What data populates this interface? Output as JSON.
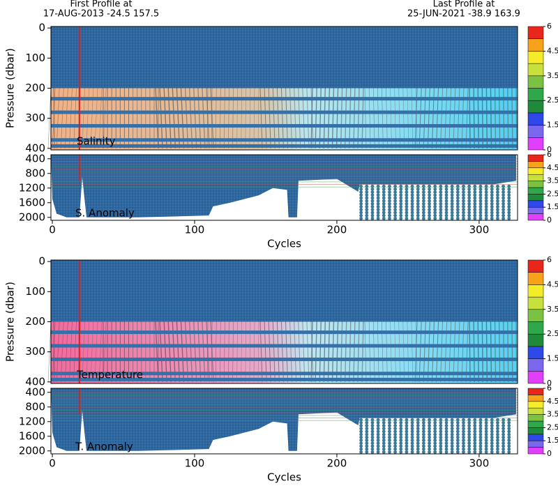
{
  "header": {
    "first_label": "First Profile at",
    "first_info": "17-AUG-2013   -24.5  157.5",
    "last_label": "Last Profile at",
    "last_info": "25-JUN-2021   -38.9  163.9"
  },
  "chart_data": [
    {
      "type": "section",
      "label": "Salinity",
      "ylabel": "Pressure (dbar)",
      "xlim": [
        -1,
        327
      ],
      "ylim": [
        -5,
        405
      ],
      "yticks": [
        0,
        100,
        200,
        300,
        400
      ],
      "colorbar": {
        "bounds": [
          0,
          1,
          1.5,
          2,
          2.5,
          3,
          3.5,
          4,
          4.5,
          5,
          6
        ],
        "colors": [
          "#e040fb",
          "#7b68ee",
          "#2f49e8",
          "#1f8a3a",
          "#2ea84a",
          "#7cc242",
          "#c8e03c",
          "#f4ec2a",
          "#f7a21b",
          "#e8261c"
        ],
        "ticks": [
          0,
          1.5,
          2.5,
          3.5,
          4.5,
          6
        ]
      }
    },
    {
      "type": "section-deep",
      "label": "S. Anomaly",
      "xlabel": "Cycles",
      "xlim": [
        -1,
        327
      ],
      "xticks": [
        0,
        100,
        200,
        300
      ],
      "ylim": [
        290,
        2080
      ],
      "yticks": [
        400,
        800,
        1200,
        1600,
        2000
      ],
      "colorbar": {
        "bounds": [
          0,
          1,
          1.5,
          2,
          2.5,
          3,
          3.5,
          4,
          4.5,
          5,
          6
        ],
        "colors": [
          "#e040fb",
          "#7b68ee",
          "#2f49e8",
          "#1f8a3a",
          "#2ea84a",
          "#7cc242",
          "#c8e03c",
          "#f4ec2a",
          "#f7a21b",
          "#e8261c"
        ],
        "ticks": [
          0,
          1.5,
          2.5,
          3.5,
          4.5,
          6
        ]
      }
    },
    {
      "type": "section",
      "label": "Temperature",
      "ylabel": "Pressure (dbar)",
      "xlim": [
        -1,
        327
      ],
      "ylim": [
        -5,
        405
      ],
      "yticks": [
        0,
        100,
        200,
        300,
        400
      ],
      "colorbar": {
        "bounds": [
          0,
          1,
          1.5,
          2,
          2.5,
          3,
          3.5,
          4,
          4.5,
          5,
          6
        ],
        "colors": [
          "#e040fb",
          "#7b68ee",
          "#2f49e8",
          "#1f8a3a",
          "#2ea84a",
          "#7cc242",
          "#c8e03c",
          "#f4ec2a",
          "#f7a21b",
          "#e8261c"
        ],
        "ticks": [
          0,
          1.5,
          2.5,
          3.5,
          4.5,
          6
        ]
      }
    },
    {
      "type": "section-deep",
      "label": "T. Anomaly",
      "xlabel": "Cycles",
      "xlim": [
        -1,
        327
      ],
      "xticks": [
        0,
        100,
        200,
        300
      ],
      "ylim": [
        290,
        2080
      ],
      "yticks": [
        400,
        800,
        1200,
        1600,
        2000
      ],
      "colorbar": {
        "bounds": [
          0,
          1,
          1.5,
          2,
          2.5,
          3,
          3.5,
          4,
          4.5,
          5,
          6
        ],
        "colors": [
          "#e040fb",
          "#7b68ee",
          "#2f49e8",
          "#1f8a3a",
          "#2ea84a",
          "#7cc242",
          "#c8e03c",
          "#f4ec2a",
          "#f7a21b",
          "#e8261c"
        ],
        "ticks": [
          0,
          1.5,
          2.5,
          3.5,
          4.5,
          6
        ]
      }
    }
  ]
}
